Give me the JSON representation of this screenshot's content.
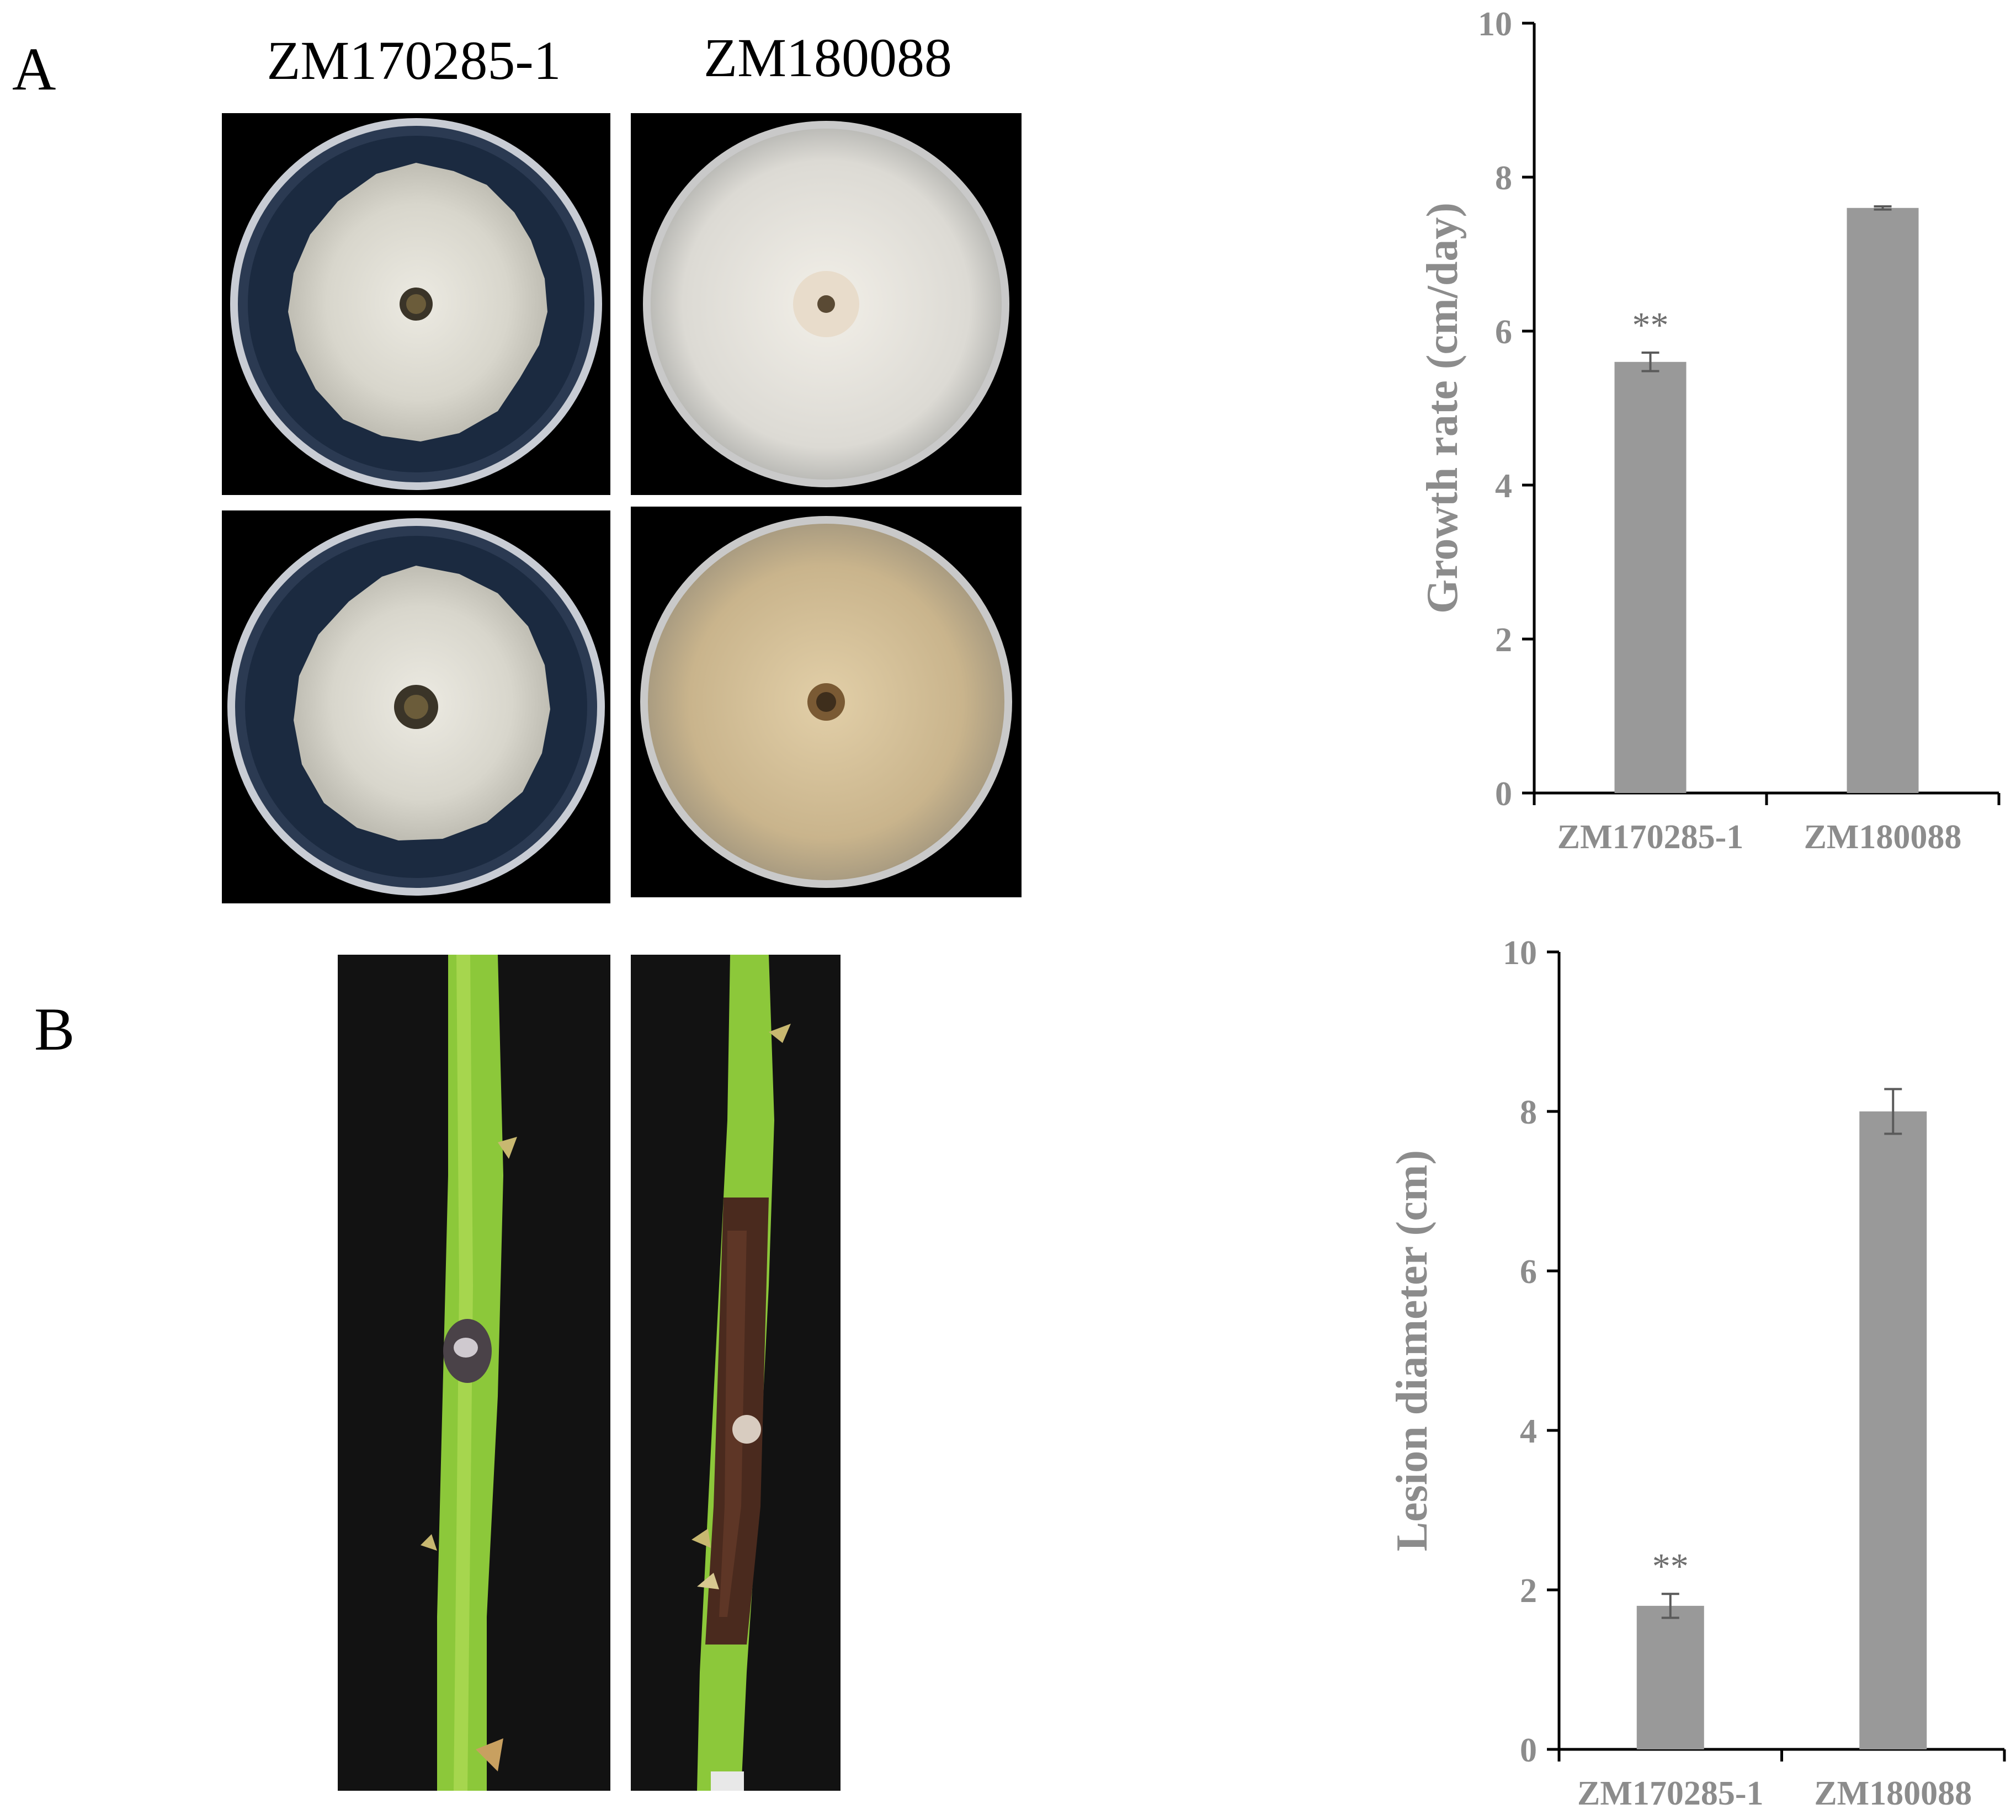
{
  "panels": {
    "a_letter": "A",
    "b_letter": "B"
  },
  "photos": {
    "column_labels": [
      "ZM170285-1",
      "ZM180088"
    ]
  },
  "colors": {
    "bar": "#999999",
    "axis": "#000000",
    "plate_dark": "#1b2a40",
    "mycelium": "#d8d6cc",
    "mycelium_tan": "#c9b48c",
    "stem_green": "#8cc83a",
    "lesion_brown": "#4a2a1e"
  },
  "chart_data": [
    {
      "type": "bar",
      "categories": [
        "ZM170285-1",
        "ZM180088"
      ],
      "values": [
        5.6,
        7.6
      ],
      "errors": [
        0.12,
        0.02
      ],
      "annotations": [
        "**",
        ""
      ],
      "title": "",
      "xlabel": "",
      "ylabel": "Growth rate (cm/day)",
      "ylim": [
        0,
        10
      ],
      "yticks": [
        "0",
        "2",
        "4",
        "6",
        "8",
        "10"
      ],
      "grid": false
    },
    {
      "type": "bar",
      "categories": [
        "ZM170285-1",
        "ZM180088"
      ],
      "values": [
        1.8,
        8.0
      ],
      "errors": [
        0.15,
        0.28
      ],
      "annotations": [
        "**",
        ""
      ],
      "title": "",
      "xlabel": "",
      "ylabel": "Lesion diameter (cm)",
      "ylim": [
        0,
        10
      ],
      "yticks": [
        "0",
        "2",
        "4",
        "6",
        "8",
        "10"
      ],
      "grid": false
    }
  ]
}
